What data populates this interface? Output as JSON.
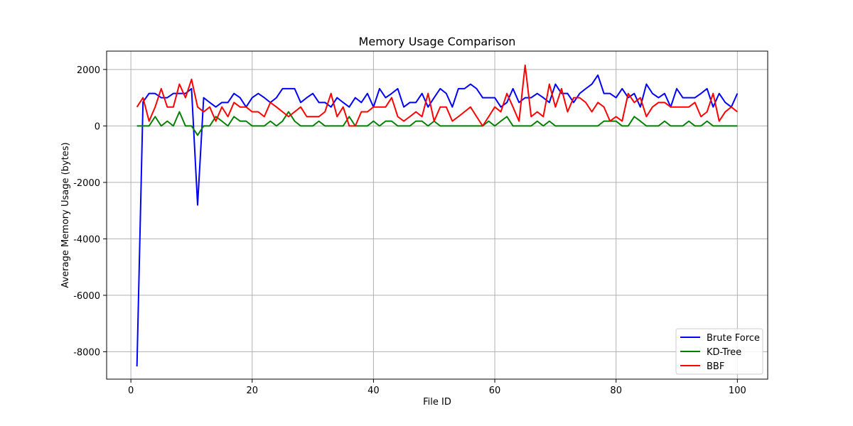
{
  "chart_data": {
    "type": "line",
    "title": "Memory Usage Comparison",
    "xlabel": "File ID",
    "ylabel": "Average Memory Usage (bytes)",
    "xlim": [
      -4,
      105
    ],
    "ylim": [
      -8970,
      2650
    ],
    "xticks": [
      0,
      20,
      40,
      60,
      80,
      100
    ],
    "yticks": [
      -8000,
      -6000,
      -4000,
      -2000,
      0,
      2000
    ],
    "xtick_labels": [
      "0",
      "20",
      "40",
      "60",
      "80",
      "100"
    ],
    "ytick_labels": [
      "-8000",
      "-6000",
      "-4000",
      "-2000",
      "0",
      "2000"
    ],
    "grid": true,
    "legend_position": "lower-right",
    "x": [
      1,
      2,
      3,
      4,
      5,
      6,
      7,
      8,
      9,
      10,
      11,
      12,
      13,
      14,
      15,
      16,
      17,
      18,
      19,
      20,
      21,
      22,
      23,
      24,
      25,
      26,
      27,
      28,
      29,
      30,
      31,
      32,
      33,
      34,
      35,
      36,
      37,
      38,
      39,
      40,
      41,
      42,
      43,
      44,
      45,
      46,
      47,
      48,
      49,
      50,
      51,
      52,
      53,
      54,
      55,
      56,
      57,
      58,
      59,
      60,
      61,
      62,
      63,
      64,
      65,
      66,
      67,
      68,
      69,
      70,
      71,
      72,
      73,
      74,
      75,
      76,
      77,
      78,
      79,
      80,
      81,
      82,
      83,
      84,
      85,
      86,
      87,
      88,
      89,
      90,
      91,
      92,
      93,
      94,
      95,
      96,
      97,
      98,
      99,
      100
    ],
    "series": [
      {
        "name": "Brute Force",
        "color": "#0000ff",
        "values": [
          -8520,
          850,
          1150,
          1150,
          1000,
          1000,
          1150,
          1150,
          1150,
          1320,
          -2800,
          1000,
          830,
          670,
          830,
          830,
          1150,
          1000,
          670,
          1000,
          1150,
          1000,
          830,
          1000,
          1320,
          1320,
          1320,
          830,
          1000,
          1150,
          830,
          830,
          670,
          1000,
          830,
          670,
          1000,
          830,
          1150,
          670,
          1320,
          1000,
          1150,
          1320,
          670,
          830,
          830,
          1150,
          670,
          1000,
          1320,
          1150,
          670,
          1320,
          1320,
          1480,
          1320,
          1000,
          1000,
          1000,
          670,
          830,
          1320,
          830,
          1000,
          1000,
          1150,
          1000,
          830,
          1480,
          1150,
          1150,
          830,
          1150,
          1320,
          1480,
          1800,
          1150,
          1150,
          1000,
          1320,
          1000,
          1150,
          670,
          1480,
          1150,
          1000,
          1150,
          670,
          1320,
          1000,
          1000,
          1000,
          1150,
          1320,
          670,
          1150,
          830,
          670,
          1150
        ]
      },
      {
        "name": "KD-Tree",
        "color": "#008000",
        "values": [
          0,
          0,
          0,
          330,
          0,
          170,
          0,
          500,
          0,
          0,
          -330,
          0,
          0,
          330,
          170,
          0,
          330,
          170,
          170,
          0,
          0,
          0,
          170,
          0,
          170,
          500,
          170,
          0,
          0,
          0,
          170,
          0,
          0,
          0,
          0,
          330,
          0,
          0,
          0,
          170,
          0,
          170,
          170,
          0,
          0,
          0,
          170,
          170,
          0,
          170,
          0,
          0,
          0,
          0,
          0,
          0,
          0,
          0,
          170,
          0,
          170,
          330,
          0,
          0,
          0,
          0,
          170,
          0,
          170,
          0,
          0,
          0,
          0,
          0,
          0,
          0,
          0,
          170,
          170,
          170,
          0,
          0,
          330,
          170,
          0,
          0,
          0,
          170,
          0,
          0,
          0,
          170,
          0,
          0,
          170,
          0,
          0,
          0,
          0,
          0
        ]
      },
      {
        "name": "BBF",
        "color": "#ff0000",
        "values": [
          670,
          1000,
          170,
          670,
          1320,
          670,
          670,
          1480,
          1000,
          1650,
          670,
          500,
          670,
          170,
          670,
          330,
          830,
          670,
          670,
          500,
          500,
          330,
          830,
          670,
          500,
          330,
          500,
          670,
          330,
          330,
          330,
          500,
          1150,
          330,
          670,
          0,
          0,
          500,
          500,
          670,
          670,
          670,
          1000,
          330,
          170,
          330,
          500,
          330,
          1150,
          170,
          670,
          670,
          170,
          330,
          500,
          670,
          330,
          0,
          330,
          670,
          500,
          1150,
          670,
          170,
          2150,
          330,
          500,
          330,
          1480,
          670,
          1320,
          500,
          1000,
          1000,
          830,
          500,
          830,
          670,
          170,
          330,
          170,
          1150,
          830,
          1000,
          330,
          670,
          830,
          830,
          670,
          670,
          670,
          670,
          830,
          330,
          500,
          1150,
          170,
          500,
          670,
          500
        ]
      }
    ]
  }
}
